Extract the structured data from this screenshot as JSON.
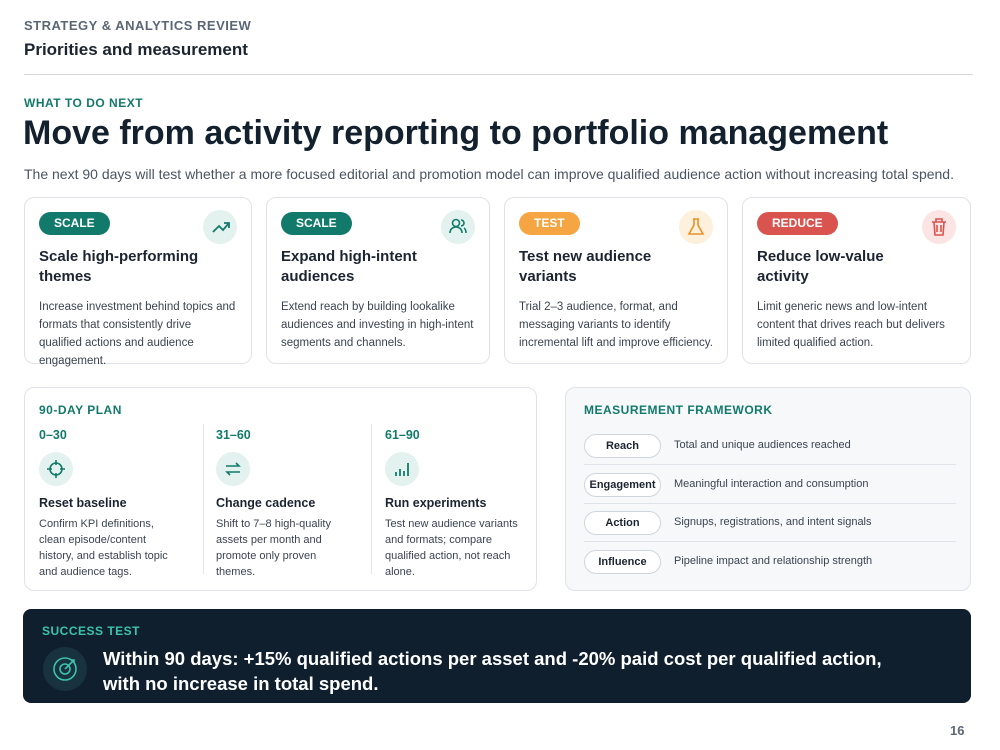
{
  "header": {
    "kicker": "STRATEGY & ANALYTICS REVIEW",
    "title": "Priorities and measurement"
  },
  "section": {
    "kicker": "WHAT TO DO NEXT",
    "title": "Move from activity reporting to portfolio management",
    "subtitle": "The next 90 days will test whether a more focused editorial and promotion model can improve qualified audience action without increasing total spend."
  },
  "cards": [
    {
      "tag": "SCALE",
      "title": "Scale high-performing themes",
      "body": "Increase investment behind topics and formats that consistently drive qualified actions and audience engagement."
    },
    {
      "tag": "SCALE",
      "title": "Expand high-intent audiences",
      "body": "Extend reach by building lookalike audiences and investing in high-intent segments and channels."
    },
    {
      "tag": "TEST",
      "title": "Test new audience variants",
      "body": "Trial 2–3 audience, format, and messaging variants to identify incremental lift and improve efficiency."
    },
    {
      "tag": "REDUCE",
      "title": "Reduce low-value activity",
      "body": "Limit generic news and low-intent content that drives reach but delivers limited qualified action."
    }
  ],
  "plan": {
    "title": "90-DAY PLAN",
    "phases": [
      {
        "range": "0–30",
        "title": "Reset baseline",
        "body": "Confirm KPI definitions, clean episode/content history, and establish topic and audience tags."
      },
      {
        "range": "31–60",
        "title": "Change cadence",
        "body": "Shift to 7–8 high-quality assets per month and promote only proven themes."
      },
      {
        "range": "61–90",
        "title": "Run experiments",
        "body": "Test new audience variants and formats; compare qualified action, not reach alone."
      }
    ]
  },
  "measurement": {
    "title": "MEASUREMENT FRAMEWORK",
    "rows": [
      {
        "label": "Reach",
        "desc": "Total and unique audiences reached"
      },
      {
        "label": "Engagement",
        "desc": "Meaningful interaction and consumption"
      },
      {
        "label": "Action",
        "desc": "Signups, registrations, and intent signals"
      },
      {
        "label": "Influence",
        "desc": "Pipeline impact and relationship strength"
      }
    ]
  },
  "success": {
    "label": "SUCCESS TEST",
    "text": "Within 90 days: +15% qualified actions per asset and -20% paid cost per qualified action, with no increase in total spend."
  },
  "page_number": "16"
}
